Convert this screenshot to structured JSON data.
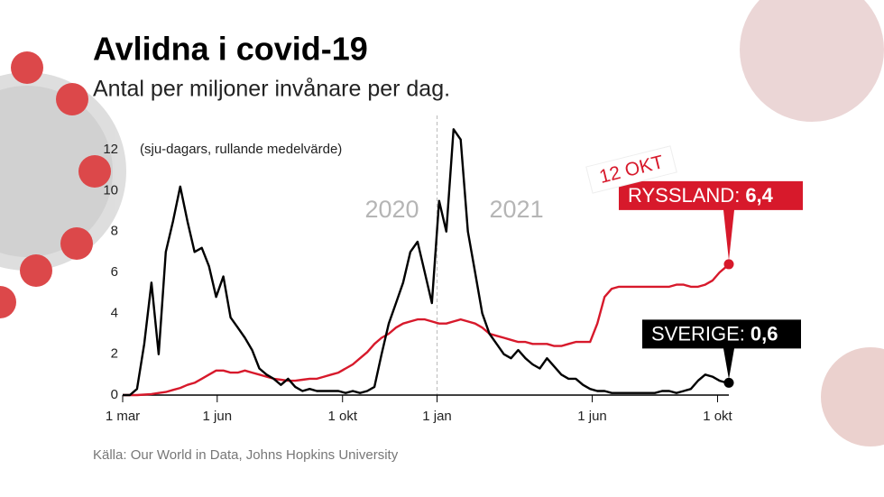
{
  "chart_data": {
    "type": "line",
    "title": "Avlidna i covid-19",
    "subtitle": "Antal per miljoner invånare per dag.",
    "note": "(sju-dagars, rullande medelvärde)",
    "year_labels": [
      "2020",
      "2021"
    ],
    "divider_x": 306,
    "date_label": "12 OKT",
    "source": "Källa: Our World in Data, Johns Hopkins University",
    "x": [
      0,
      7,
      14,
      21,
      28,
      35,
      42,
      49,
      56,
      63,
      70,
      77,
      84,
      91,
      98,
      105,
      112,
      119,
      126,
      133,
      140,
      147,
      154,
      161,
      168,
      175,
      182,
      189,
      196,
      203,
      210,
      217,
      224,
      231,
      238,
      245,
      252,
      259,
      266,
      273,
      280,
      287,
      294,
      301,
      308,
      315,
      322,
      329,
      336,
      343,
      350,
      357,
      364,
      371,
      378,
      385,
      392,
      399,
      406,
      413,
      420,
      427,
      434,
      441,
      448,
      455,
      462,
      469,
      476,
      483,
      490,
      497,
      504,
      511,
      518,
      525,
      532,
      539,
      546,
      553,
      560,
      567,
      574,
      581,
      588,
      590
    ],
    "xlim": [
      0,
      590
    ],
    "xticks": [
      {
        "value": 0,
        "label": "1 mar"
      },
      {
        "value": 92,
        "label": "1 jun"
      },
      {
        "value": 214,
        "label": "1 okt"
      },
      {
        "value": 306,
        "label": "1 jan"
      },
      {
        "value": 457,
        "label": "1 jun"
      },
      {
        "value": 579,
        "label": "1 okt"
      }
    ],
    "ylim": [
      0,
      12
    ],
    "yticks": [
      0,
      2,
      4,
      6,
      8,
      10,
      12
    ],
    "series": [
      {
        "name": "RYSSLAND:",
        "end_label": "6,4",
        "color": "#d7192b",
        "values": [
          0,
          0,
          0,
          0.02,
          0.05,
          0.1,
          0.15,
          0.25,
          0.35,
          0.5,
          0.6,
          0.8,
          1.0,
          1.2,
          1.2,
          1.1,
          1.1,
          1.2,
          1.1,
          1.0,
          0.9,
          0.8,
          0.75,
          0.7,
          0.7,
          0.75,
          0.8,
          0.8,
          0.9,
          1.0,
          1.1,
          1.3,
          1.5,
          1.8,
          2.1,
          2.5,
          2.8,
          3.0,
          3.3,
          3.5,
          3.6,
          3.7,
          3.7,
          3.6,
          3.5,
          3.5,
          3.6,
          3.7,
          3.6,
          3.5,
          3.3,
          3.0,
          2.9,
          2.8,
          2.7,
          2.6,
          2.6,
          2.5,
          2.5,
          2.5,
          2.4,
          2.4,
          2.5,
          2.6,
          2.6,
          2.6,
          3.5,
          4.8,
          5.2,
          5.3,
          5.3,
          5.3,
          5.3,
          5.3,
          5.3,
          5.3,
          5.3,
          5.4,
          5.4,
          5.3,
          5.3,
          5.4,
          5.6,
          6.0,
          6.3,
          6.4
        ]
      },
      {
        "name": "SVERIGE:",
        "end_label": "0,6",
        "color": "#000000",
        "values": [
          0,
          0,
          0.3,
          2.5,
          5.5,
          2,
          7,
          8.5,
          10.2,
          8.5,
          7,
          7.2,
          6.3,
          4.8,
          5.8,
          3.8,
          3.3,
          2.8,
          2.2,
          1.3,
          1.0,
          0.8,
          0.5,
          0.8,
          0.4,
          0.2,
          0.3,
          0.2,
          0.2,
          0.2,
          0.2,
          0.1,
          0.2,
          0.1,
          0.2,
          0.4,
          2,
          3.5,
          4.5,
          5.5,
          7,
          7.5,
          6,
          4.5,
          9.5,
          8,
          13,
          12.5,
          8,
          6,
          4,
          3,
          2.5,
          2,
          1.8,
          2.2,
          1.8,
          1.5,
          1.3,
          1.8,
          1.4,
          1.0,
          0.8,
          0.8,
          0.5,
          0.3,
          0.2,
          0.2,
          0.1,
          0.1,
          0.1,
          0.1,
          0.1,
          0.1,
          0.1,
          0.2,
          0.2,
          0.1,
          0.2,
          0.3,
          0.7,
          1.0,
          0.9,
          0.7,
          0.6,
          0.6
        ]
      }
    ]
  }
}
